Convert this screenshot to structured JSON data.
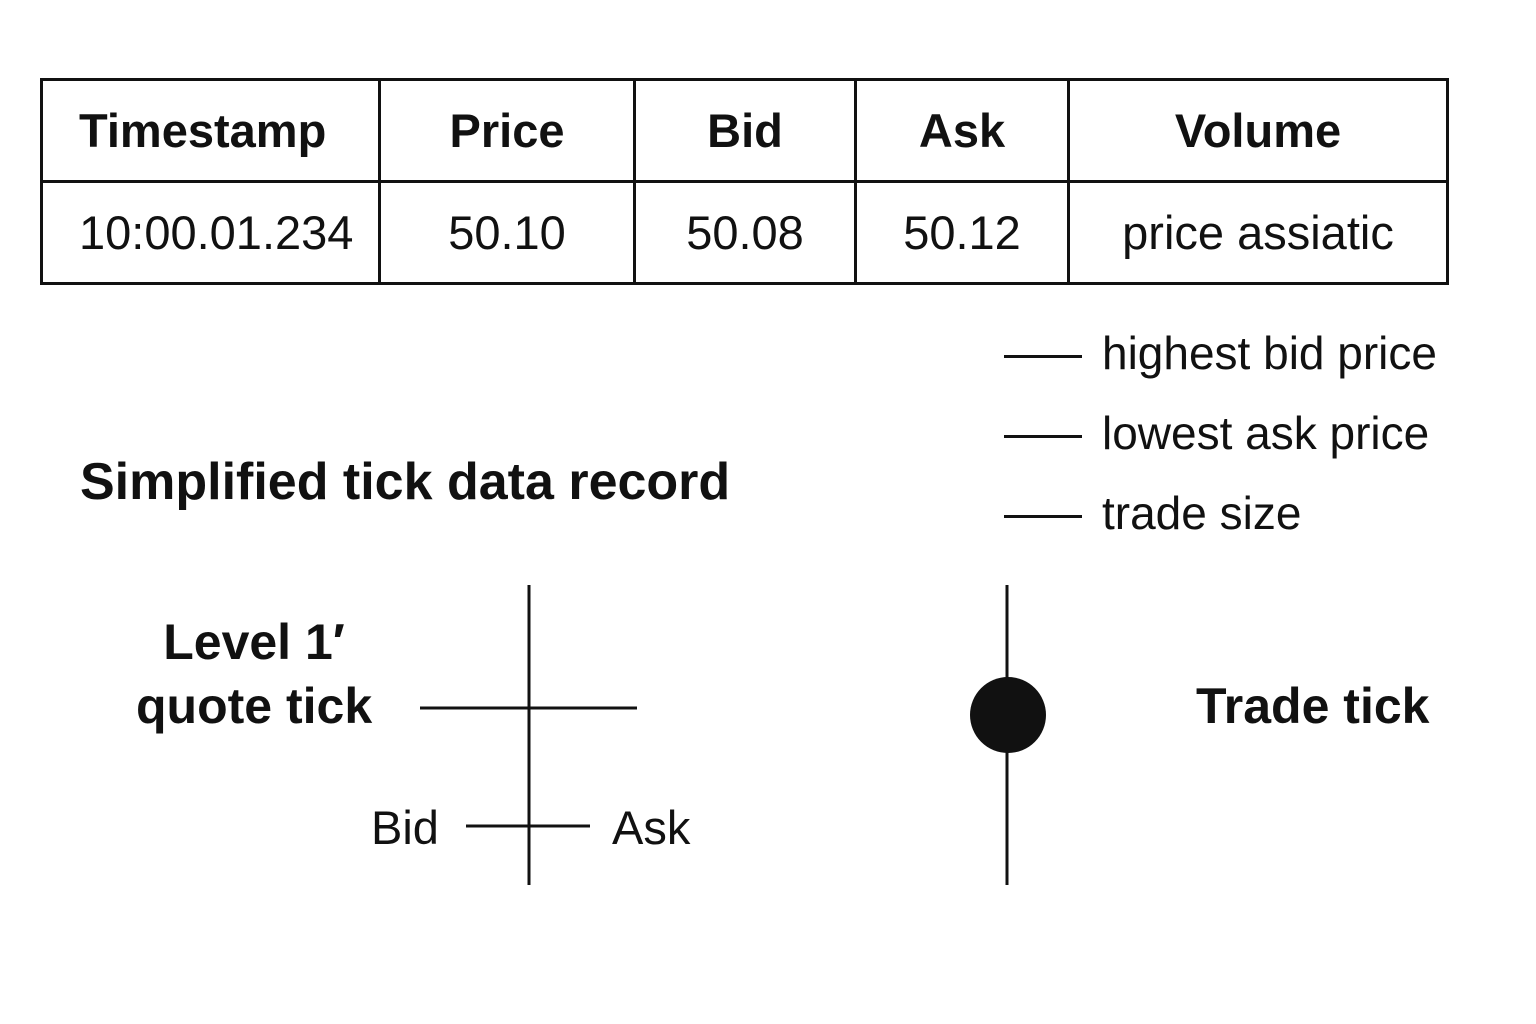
{
  "table": {
    "headers": [
      "Timestamp",
      "Price",
      "Bid",
      "Ask",
      "Volume"
    ],
    "rows": [
      [
        "10:00.01.234",
        "50.10",
        "50.08",
        "50.12",
        "price assiatic"
      ]
    ]
  },
  "legend": {
    "items": [
      "highest bid price",
      "lowest ask price",
      "trade size"
    ]
  },
  "title": "Simplified tick data record",
  "quote_tick": {
    "label_line1": "Level 1′",
    "label_line2": "quote tick",
    "bid_label": "Bid",
    "ask_label": "Ask"
  },
  "trade_tick": {
    "label": "Trade tick"
  },
  "colors": {
    "ink": "#111111",
    "background": "#ffffff"
  }
}
